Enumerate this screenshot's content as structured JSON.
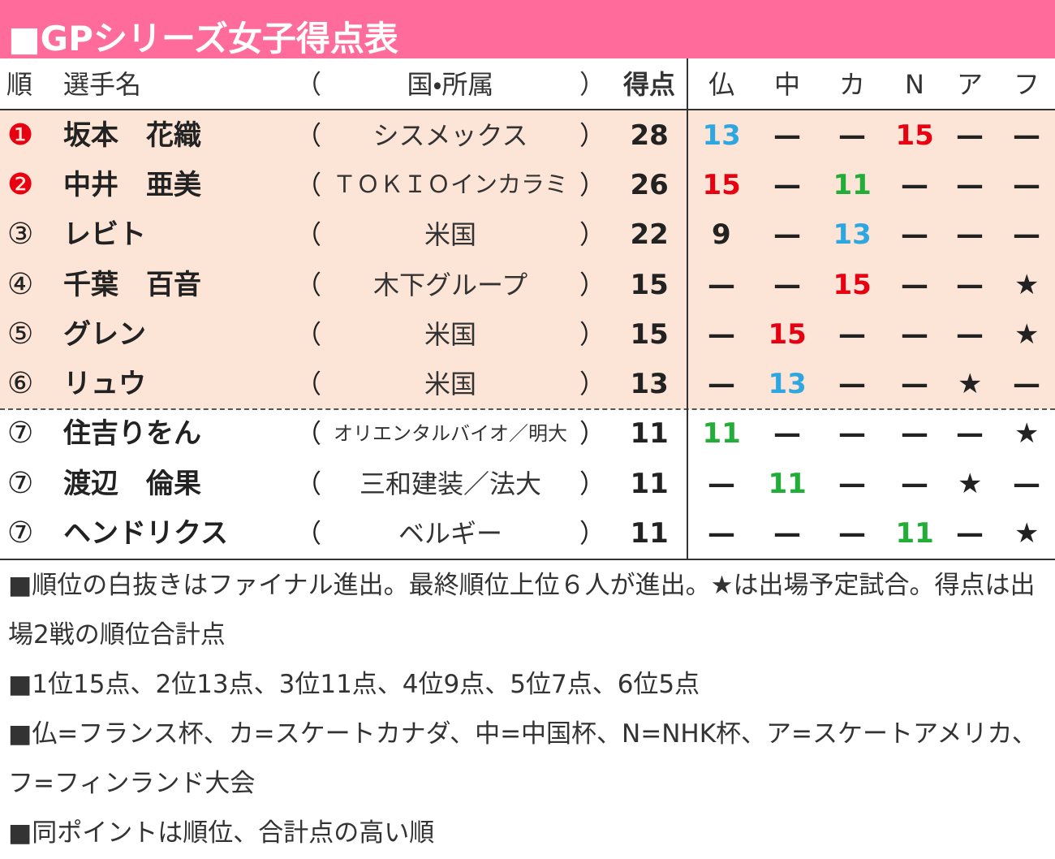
{
  "title": "■GPシリーズ女子得点表",
  "header": [
    "順",
    "選手名",
    "（",
    "国・所属",
    "）",
    "得点",
    "仏",
    "中",
    "カ",
    "N",
    "ア",
    "フ"
  ],
  "rows": [
    {
      "rank": "❶",
      "rank_color": "#e60012",
      "name": "坂本　花織",
      "open": "（",
      "affiliation": "シスメックス",
      "close": "）",
      "points": 28,
      "results": [
        13,
        "—",
        "—",
        15,
        "—",
        "—"
      ],
      "result_colors": [
        "#2ea7e0",
        null,
        null,
        "#e60012",
        null,
        null
      ]
    },
    {
      "rank": "❷",
      "rank_color": "#e60012",
      "name": "中井　亜美",
      "open": "（",
      "affiliation": "ＴＯＫＩＯインカラミ",
      "close": "）",
      "points": 26,
      "results": [
        15,
        "—",
        11,
        "—",
        "—",
        "—"
      ],
      "result_colors": [
        "#e60012",
        null,
        "#22ac38",
        null,
        null,
        null
      ]
    },
    {
      "rank": "③",
      "rank_color": null,
      "name": "レビト",
      "open": "（",
      "affiliation": "米国",
      "close": "）",
      "points": 22,
      "results": [
        9,
        "—",
        13,
        "—",
        "—",
        "—"
      ],
      "result_colors": [
        null,
        null,
        "#2ea7e0",
        null,
        null,
        null
      ]
    },
    {
      "rank": "④",
      "rank_color": null,
      "name": "千葉　百音",
      "open": "（",
      "affiliation": "木下グループ",
      "close": "）",
      "points": 15,
      "results": [
        "—",
        "—",
        15,
        "—",
        "—",
        "★"
      ],
      "result_colors": [
        null,
        null,
        "#e60012",
        null,
        null,
        null
      ]
    },
    {
      "rank": "⑤",
      "rank_color": null,
      "name": "グレン",
      "open": "（",
      "affiliation": "米国",
      "close": "）",
      "points": 15,
      "results": [
        "—",
        15,
        "—",
        "—",
        "—",
        "★"
      ],
      "result_colors": [
        null,
        "#e60012",
        null,
        null,
        null,
        null
      ]
    },
    {
      "rank": "⑥",
      "rank_color": null,
      "name": "リュウ",
      "open": "（",
      "affiliation": "米国",
      "close": "）",
      "points": 13,
      "results": [
        "—",
        13,
        "—",
        "—",
        "★",
        "—"
      ],
      "result_colors": [
        null,
        "#2ea7e0",
        null,
        null,
        null,
        null
      ]
    },
    {
      "rank": "⑦",
      "rank_color": null,
      "name": "住吉りをん",
      "open": "（",
      "affiliation": "オリエンタルバイオ／明大",
      "close": "）",
      "points": 11,
      "results": [
        11,
        "—",
        "—",
        "—",
        "—",
        "★"
      ],
      "result_colors": [
        "#22ac38",
        null,
        null,
        null,
        null,
        null
      ]
    },
    {
      "rank": "⑦",
      "rank_color": null,
      "name": "渡辺　倫果",
      "open": "（",
      "affiliation": "三和建装／法大",
      "close": "）",
      "points": 11,
      "results": [
        "—",
        11,
        "—",
        "—",
        "★",
        "—"
      ],
      "result_colors": [
        null,
        "#22ac38",
        null,
        null,
        null,
        null
      ]
    },
    {
      "rank": "⑦",
      "rank_color": null,
      "name": "ヘンドリクス",
      "open": "（",
      "affiliation": "ベルギー",
      "close": "）",
      "points": 11,
      "results": [
        "—",
        "—",
        "—",
        11,
        "—",
        "★"
      ],
      "result_colors": [
        null,
        null,
        null,
        "#22ac38",
        null,
        null
      ]
    }
  ],
  "finalists": 6,
  "notes": [
    "■順位の白抜きはファイナル進出。最終順位上位６人が進出。★は出場予定試合。得点は出場2戦の順位合計点",
    "■1位15点、2位13点、3位11点、4位9点、5位7点、6位5点",
    "■仏=フランス杯、カ=スケートカナダ、中=中国杯、N=NHK杯、ア=スケートアメリカ、フ=フィンランド大会",
    "■同ポイントは順位、合計点の高い順"
  ]
}
